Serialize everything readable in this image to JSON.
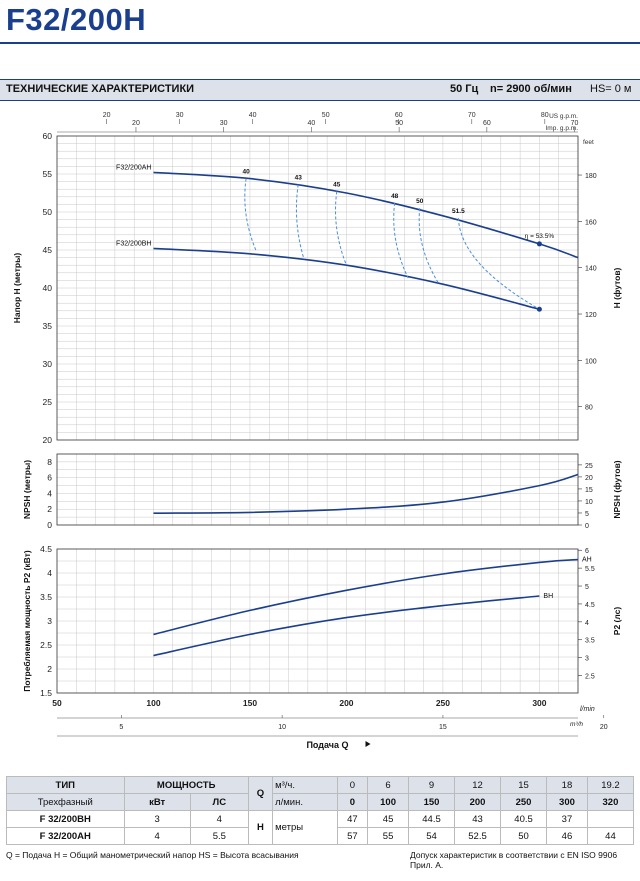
{
  "title": "F32/200H",
  "spec_bar": {
    "title": "ТЕХНИЧЕСКИЕ ХАРАКТЕРИСТИКИ",
    "frequency": "50 Гц",
    "speed": "n= 2900 об/мин",
    "hs": "HS= 0 м"
  },
  "chart_data": [
    {
      "type": "line",
      "ylabel": "Напор H (метры)",
      "ylabel_right": "H (футов)",
      "xlim": [
        50,
        320
      ],
      "ylim": [
        20,
        60
      ],
      "yticks": [
        20,
        25,
        30,
        35,
        40,
        45,
        50,
        55,
        60
      ],
      "yticks_right": [
        80,
        100,
        120,
        140,
        160,
        180
      ],
      "ylabel_right_unit": "feet",
      "series": [
        {
          "name": "F32/200AH",
          "x": [
            100,
            150,
            200,
            250,
            300,
            320
          ],
          "y": [
            55.2,
            54.4,
            52.5,
            49.5,
            45.8,
            44
          ]
        },
        {
          "name": "F32/200BH",
          "x": [
            100,
            150,
            200,
            250,
            300
          ],
          "y": [
            45.2,
            44.5,
            43,
            40.5,
            37.2
          ]
        }
      ],
      "efficiency_labels": [
        "40",
        "43",
        "45",
        "48",
        "50",
        "51.5"
      ],
      "efficiency_curves": [
        {
          "label": "40",
          "x": [
            148,
            153
          ],
          "y": [
            54.4,
            45
          ]
        },
        {
          "label": "43",
          "x": [
            175,
            178
          ],
          "y": [
            53.6,
            43.8
          ]
        },
        {
          "label": "45",
          "x": [
            195,
            200
          ],
          "y": [
            52.7,
            43
          ]
        },
        {
          "label": "48",
          "x": [
            225,
            232
          ],
          "y": [
            51.2,
            41.3
          ]
        },
        {
          "label": "50",
          "x": [
            238,
            248
          ],
          "y": [
            50.5,
            40.5
          ]
        },
        {
          "label": "51.5",
          "x": [
            258,
            300
          ],
          "y": [
            49.2,
            37.2
          ]
        }
      ],
      "best_efficiency_label": "η = 53.5%",
      "markers": [
        {
          "x": 300,
          "y": 45.8
        },
        {
          "x": 300,
          "y": 37.2
        }
      ]
    },
    {
      "type": "line",
      "ylabel": "NPSH (метры)",
      "ylabel_right": "NPSH (футов)",
      "ylim": [
        0,
        9
      ],
      "yticks": [
        0,
        2,
        4,
        6,
        8
      ],
      "yticks_right": [
        0,
        5,
        10,
        15,
        20,
        25
      ],
      "series": [
        {
          "x": [
            100,
            150,
            200,
            250,
            300,
            320
          ],
          "y": [
            1.5,
            1.6,
            2.0,
            2.9,
            5.0,
            6.4
          ]
        }
      ]
    },
    {
      "type": "line",
      "ylabel": "Потребляемая мощность P2 (кВт)",
      "ylabel_right": "P2 (лс)",
      "ylim": [
        1.5,
        4.5
      ],
      "yticks": [
        1.5,
        2,
        2.5,
        3,
        3.5,
        4,
        4.5
      ],
      "yticks_right": [
        2.5,
        3,
        3.5,
        4,
        4.5,
        5,
        5.5,
        6
      ],
      "series": [
        {
          "name": "AH",
          "x": [
            100,
            150,
            200,
            250,
            300,
            320
          ],
          "y": [
            2.72,
            3.22,
            3.64,
            3.98,
            4.22,
            4.28
          ]
        },
        {
          "name": "BH",
          "x": [
            100,
            150,
            200,
            250,
            300
          ],
          "y": [
            2.28,
            2.72,
            3.07,
            3.32,
            3.52
          ]
        }
      ]
    }
  ],
  "axes": {
    "top_usgpm_label": "US g.p.m.",
    "top_impgpm_label": "Imp. g.p.m.",
    "top_usgpm_ticks": [
      "20",
      "30",
      "40",
      "50",
      "60",
      "70",
      "80"
    ],
    "top_impgpm_ticks": [
      "20",
      "30",
      "40",
      "50",
      "60",
      "70"
    ],
    "x_lmin_ticks": [
      "50",
      "100",
      "150",
      "200",
      "250",
      "300"
    ],
    "x_lmin_unit": "l/min",
    "x_m3h_ticks": [
      "5",
      "10",
      "15",
      "20"
    ],
    "x_m3h_unit": "m³/h",
    "x_label": "Подача Q"
  },
  "table": {
    "head_type": "ТИП",
    "head_power": "МОЩНОСТЬ",
    "q_symbol": "Q",
    "h_symbol": "H",
    "unit_m3h": "м³/ч.",
    "unit_lmin": "л/мин.",
    "unit_m": "метры",
    "phase": "Трехфазный",
    "kw": "кВт",
    "hp": "ЛС",
    "q_m3h": [
      "0",
      "6",
      "9",
      "12",
      "15",
      "18",
      "19.2"
    ],
    "q_lmin": [
      "0",
      "100",
      "150",
      "200",
      "250",
      "300",
      "320"
    ],
    "rows": [
      {
        "model": "F 32/200BH",
        "kw": "3",
        "hp": "4",
        "h": [
          "47",
          "45",
          "44.5",
          "43",
          "40.5",
          "37",
          ""
        ]
      },
      {
        "model": "F 32/200AH",
        "kw": "4",
        "hp": "5.5",
        "h": [
          "57",
          "55",
          "54",
          "52.5",
          "50",
          "46",
          "44"
        ]
      }
    ]
  },
  "footer": {
    "left": "Q = Подача  H = Общий манометрический напор  HS = Высота всасывания",
    "right": "Допуск характеристик в соответствии с EN ISO 9906 Прил. A."
  },
  "colors": {
    "brand": "#1b3f8f",
    "curve": "#1b3f8f",
    "grid": "#c8c8c8",
    "dashed": "#4a90d9"
  }
}
